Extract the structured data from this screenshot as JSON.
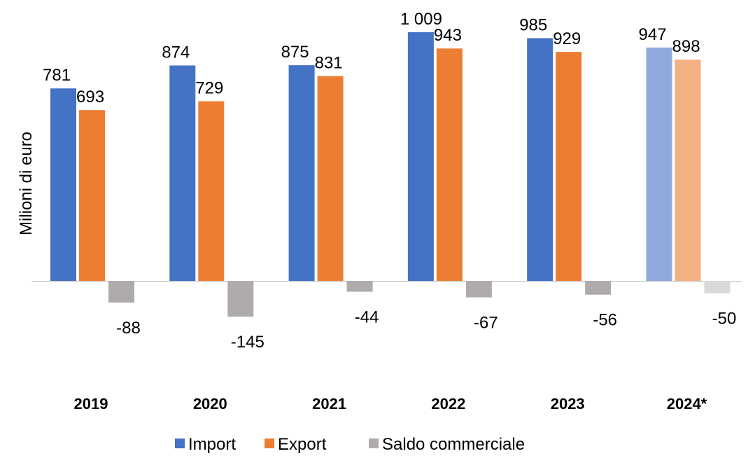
{
  "chart_data": {
    "type": "bar",
    "ylabel": "Milioni di euro",
    "categories": [
      "2019",
      "2020",
      "2021",
      "2022",
      "2023",
      "2024*"
    ],
    "series": [
      {
        "name": "Import",
        "values": [
          781,
          874,
          875,
          1009,
          985,
          947
        ],
        "labels": [
          "781",
          "874",
          "875",
          "1 009",
          "985",
          "947"
        ],
        "color": "#4472C4",
        "last_color": "#8FAADC"
      },
      {
        "name": "Export",
        "values": [
          693,
          729,
          831,
          943,
          929,
          898
        ],
        "labels": [
          "693",
          "729",
          "831",
          "943",
          "929",
          "898"
        ],
        "color": "#ED7D31",
        "last_color": "#F4B183"
      },
      {
        "name": "Saldo commerciale",
        "values": [
          -88,
          -145,
          -44,
          -67,
          -56,
          -50
        ],
        "labels": [
          "-88",
          "-145",
          "-44",
          "-67",
          "-56",
          "-50"
        ],
        "color": "#AFABAB",
        "last_color": "#D9D9D9"
      }
    ],
    "legend_position": "bottom",
    "grid": false
  }
}
